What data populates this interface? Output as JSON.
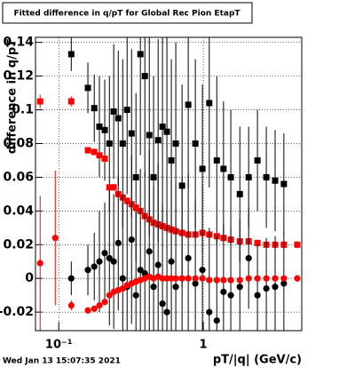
{
  "chart_data": {
    "type": "scatter",
    "title": "Fitted difference in q/pT for Global Rec Pion EtapT",
    "x_label": "pT/|q| (GeV/c)",
    "y_label": "difference in q/pT",
    "footer": "Wed Jan 13 15:07:35 2021",
    "x_log": true,
    "grid": true,
    "xlim": [
      0.069,
      4.8
    ],
    "ylim": [
      -0.031,
      0.143
    ],
    "xticks": [
      {
        "value": 0.1,
        "label": "10⁻¹"
      },
      1
    ],
    "yticks": [
      -0.02,
      0,
      0.02,
      0.04,
      0.06,
      0.08,
      0.1,
      0.12,
      0.14
    ],
    "x": [
      0.0743,
      0.0945,
      0.122,
      0.159,
      0.176,
      0.191,
      0.208,
      0.224,
      0.24,
      0.258,
      0.277,
      0.297,
      0.319,
      0.342,
      0.367,
      0.394,
      0.423,
      0.453,
      0.487,
      0.522,
      0.56,
      0.601,
      0.645,
      0.713,
      0.787,
      0.881,
      0.986,
      1.1,
      1.24,
      1.38,
      1.55,
      1.79,
      2.06,
      2.37,
      2.73,
      3.14,
      3.61,
      4.47
    ],
    "series": [
      {
        "marker": "square",
        "color": "#000000",
        "values": [
          null,
          null,
          0.133,
          0.113,
          0.101,
          0.09,
          0.088,
          0.08,
          0.099,
          0.095,
          0.08,
          0.1,
          0.086,
          0.06,
          0.133,
          0.12,
          0.085,
          0.06,
          0.082,
          0.09,
          0.087,
          0.07,
          0.08,
          0.055,
          0.103,
          0.08,
          0.065,
          0.104,
          0.07,
          0.065,
          0.06,
          0.05,
          0.06,
          0.07,
          0.06,
          0.058,
          0.056,
          null
        ],
        "errors": [
          null,
          null,
          0.01,
          0.015,
          0.02,
          0.03,
          0.03,
          0.04,
          0.04,
          0.04,
          0.05,
          0.05,
          0.05,
          0.05,
          0.06,
          0.06,
          0.06,
          0.06,
          0.06,
          0.06,
          0.06,
          0.06,
          0.06,
          0.06,
          0.05,
          0.05,
          0.05,
          0.05,
          0.05,
          0.04,
          0.04,
          0.04,
          0.03,
          0.03,
          0.03,
          0.03,
          0.03,
          null
        ]
      },
      {
        "marker": "square",
        "color": "#ff0000",
        "values": [
          0.105,
          null,
          0.105,
          0.076,
          0.075,
          0.073,
          0.071,
          0.054,
          0.054,
          0.05,
          0.048,
          0.046,
          0.044,
          0.042,
          0.04,
          0.037,
          0.035,
          0.033,
          0.032,
          0.031,
          0.03,
          0.029,
          0.028,
          0.027,
          0.026,
          0.026,
          0.027,
          0.026,
          0.025,
          0.024,
          0.023,
          0.022,
          0.022,
          0.021,
          0.02,
          0.02,
          0.02,
          0.02
        ],
        "errors": [
          0.004,
          null,
          0.003,
          0.002,
          0.002,
          0.002,
          0.002,
          0.002,
          0.002,
          0.002,
          0.002,
          0.002,
          0.002,
          0.002,
          0.002,
          0.002,
          0.002,
          0.002,
          0.002,
          0.002,
          0.002,
          0.002,
          0.002,
          0.002,
          0.002,
          0.002,
          0.002,
          0.002,
          0.002,
          0.002,
          0.002,
          0.002,
          0.002,
          0.002,
          0.002,
          0.002,
          0.002,
          0.002
        ]
      },
      {
        "marker": "circle",
        "color": "#000000",
        "values": [
          null,
          null,
          0.0,
          0.005,
          0.007,
          0.01,
          0.015,
          0.012,
          0.01,
          0.021,
          0.0,
          -0.005,
          0.023,
          -0.01,
          0.005,
          0.003,
          0.016,
          -0.005,
          0.008,
          -0.015,
          -0.02,
          0.01,
          -0.005,
          0.0,
          0.012,
          -0.003,
          0.005,
          -0.02,
          -0.025,
          -0.008,
          -0.01,
          -0.005,
          0.012,
          -0.01,
          -0.006,
          -0.005,
          -0.003,
          null
        ],
        "errors": [
          null,
          null,
          0.01,
          0.015,
          0.02,
          0.03,
          0.03,
          0.04,
          0.04,
          0.04,
          0.05,
          0.05,
          0.05,
          0.05,
          0.06,
          0.06,
          0.06,
          0.06,
          0.06,
          0.06,
          0.06,
          0.06,
          0.06,
          0.06,
          0.05,
          0.05,
          0.05,
          0.05,
          0.05,
          0.04,
          0.04,
          0.04,
          0.03,
          0.03,
          0.03,
          0.03,
          0.03,
          null
        ]
      },
      {
        "marker": "circle",
        "color": "#ff0000",
        "values": [
          0.009,
          0.024,
          -0.016,
          -0.019,
          -0.018,
          -0.016,
          -0.014,
          -0.01,
          -0.008,
          -0.007,
          -0.006,
          -0.004,
          -0.003,
          -0.002,
          -0.001,
          0.0,
          0.001,
          0.0,
          0.001,
          0.0,
          0.0,
          0.0,
          0.0,
          0.0,
          0.0,
          0.0,
          0.0,
          -0.001,
          -0.001,
          -0.001,
          -0.001,
          -0.001,
          0.0,
          0.0,
          0.0,
          0.0,
          0.0,
          0.0
        ],
        "errors": [
          0.04,
          0.04,
          0.003,
          0.002,
          0.002,
          0.002,
          0.002,
          0.002,
          0.002,
          0.002,
          0.002,
          0.002,
          0.002,
          0.002,
          0.002,
          0.002,
          0.002,
          0.002,
          0.002,
          0.002,
          0.002,
          0.002,
          0.002,
          0.002,
          0.002,
          0.002,
          0.002,
          0.002,
          0.002,
          0.002,
          0.002,
          0.002,
          0.002,
          0.002,
          0.002,
          0.002,
          0.002,
          0.002
        ]
      }
    ]
  }
}
